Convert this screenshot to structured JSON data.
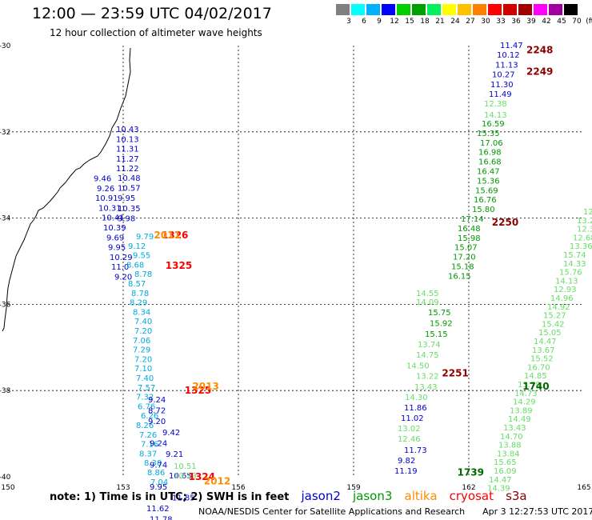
{
  "header": {
    "title": "12:00 — 23:59 UTC 04/02/2017",
    "subtitle": "12 hour collection of altimeter wave heights"
  },
  "scale": {
    "unit": "(ft)",
    "bins": [
      {
        "label": "3",
        "color": "#808080"
      },
      {
        "label": "6",
        "color": "#00ffff"
      },
      {
        "label": "9",
        "color": "#00b0ff"
      },
      {
        "label": "12",
        "color": "#0000ff"
      },
      {
        "label": "15",
        "color": "#00d000"
      },
      {
        "label": "18",
        "color": "#00a000"
      },
      {
        "label": "21",
        "color": "#00f060"
      },
      {
        "label": "24",
        "color": "#ffff00"
      },
      {
        "label": "27",
        "color": "#ffc000"
      },
      {
        "label": "30",
        "color": "#ff8000"
      },
      {
        "label": "33",
        "color": "#ff0000"
      },
      {
        "label": "36",
        "color": "#d00000"
      },
      {
        "label": "39",
        "color": "#a00000"
      },
      {
        "label": "42",
        "color": "#ff00ff"
      },
      {
        "label": "45",
        "color": "#a000a0"
      },
      {
        "label": "70",
        "color": "#000000"
      }
    ]
  },
  "map": {
    "lon_ticks": [
      "150",
      "153",
      "156",
      "159",
      "162",
      "165"
    ],
    "lat_ticks": [
      "-30",
      "-32",
      "-34",
      "-36",
      "-38",
      "-40"
    ],
    "lon_range": [
      150,
      165
    ],
    "lat_range": [
      -40,
      -30
    ]
  },
  "tracks": {
    "track_a": {
      "color": "#0000cc",
      "values": [
        "10.43",
        "10.13",
        "11.31",
        "11.27",
        "11.22",
        "9.46",
        "9.26",
        "10.91",
        "10.31",
        "10.41",
        "10.39",
        "9.69",
        "9.95",
        "10.29",
        "11.0",
        "9.20"
      ]
    },
    "track_a2": {
      "color": "#0000cc",
      "values": [
        "10.48",
        "10.57",
        "9.95",
        "10.35",
        "9.98"
      ]
    },
    "track_b": {
      "color": "#00aadd",
      "values": [
        "9.79",
        "9.12",
        "9.55",
        "8.68",
        "8.78",
        "8.57",
        "8.78",
        "8.29",
        "8.34",
        "7.40",
        "7.20",
        "7.06",
        "7.29",
        "7.20",
        "7.10",
        "7.40",
        "7.57",
        "7.32",
        "6.76",
        "6.26",
        "8.26",
        "7.26",
        "7.16",
        "8.37",
        "8.38",
        "8.86",
        "7.04"
      ]
    },
    "track_c": {
      "color": "#0000cc",
      "values": [
        "9.24",
        "8.72",
        "9.20",
        "9.42",
        "9.24",
        "9.21",
        "9.74",
        "10.65",
        "9.95",
        "11.85",
        "11.62",
        "11.78"
      ]
    },
    "track_d": {
      "color": "#66dd66",
      "values": [
        "10.51",
        "10.29"
      ]
    },
    "track_e": {
      "color": "#0000cc",
      "values": [
        "11.47",
        "10.12",
        "11.13",
        "10.27",
        "11.30",
        "11.49"
      ]
    },
    "track_f": {
      "color": "#66dd66",
      "values": [
        "12.38",
        "14.13"
      ]
    },
    "track_g": {
      "color": "#009900",
      "values": [
        "16.59",
        "15.35",
        "17.06",
        "16.98",
        "16.68",
        "16.47",
        "15.36",
        "15.69",
        "16.76",
        "15.80",
        "17.14",
        "16.48",
        "15.98",
        "15.07",
        "17.20",
        "15.18",
        "16.15"
      ]
    },
    "track_h": {
      "color": "#66dd66",
      "values": [
        "14.55",
        "14.09"
      ]
    },
    "track_i": {
      "color": "#009900",
      "values": [
        "15.75",
        "15.92",
        "15.15"
      ]
    },
    "track_j": {
      "color": "#66dd66",
      "values": [
        "13.74",
        "14.75",
        "14.50",
        "13.22",
        "13.43",
        "14.30"
      ]
    },
    "track_k": {
      "color": "#0000cc",
      "values": [
        "11.86",
        "11.02"
      ]
    },
    "track_l": {
      "color": "#66dd66",
      "values": [
        "13.02",
        "12.46"
      ]
    },
    "track_m": {
      "color": "#0000cc",
      "values": [
        "11.73",
        "9.82",
        "11.19"
      ]
    },
    "track_n": {
      "color": "#66dd66",
      "values": [
        "12",
        "13.2",
        "12.32",
        "12.68",
        "13.36",
        "15.74",
        "14.33",
        "15.76",
        "14.13",
        "12.93",
        "14.96",
        "14.92",
        "15.27",
        "15.42",
        "15.05",
        "14.47",
        "13.67",
        "15.52",
        "16.70",
        "14.85",
        "13.78",
        "14.73",
        "14.29",
        "13.89",
        "14.49",
        "13.43",
        "14.70",
        "13.88",
        "13.84",
        "15.65",
        "16.09",
        "14.47",
        "14.39"
      ]
    },
    "times": [
      {
        "label": "2248",
        "color": "#8b0000",
        "lon": 163.5,
        "lat": -30.1
      },
      {
        "label": "2249",
        "color": "#8b0000",
        "lon": 163.5,
        "lat": -30.6
      },
      {
        "label": "2250",
        "color": "#8b0000",
        "lon": 162.6,
        "lat": -34.1
      },
      {
        "label": "2251",
        "color": "#8b0000",
        "lon": 161.3,
        "lat": -37.6
      },
      {
        "label": "1740",
        "color": "#006600",
        "lon": 163.4,
        "lat": -37.9
      },
      {
        "label": "1739",
        "color": "#006600",
        "lon": 161.7,
        "lat": -39.9
      },
      {
        "label": "1326",
        "color": "#ff0000",
        "lon": 154.0,
        "lat": -34.4
      },
      {
        "label": "1325",
        "color": "#ff0000",
        "lon": 154.1,
        "lat": -35.1
      },
      {
        "label": "1325",
        "color": "#ff0000",
        "lon": 154.6,
        "lat": -38.0
      },
      {
        "label": "1324",
        "color": "#ff0000",
        "lon": 154.7,
        "lat": -40.0
      },
      {
        "label": "2011",
        "color": "#ff8c00",
        "lon": 153.8,
        "lat": -34.4
      },
      {
        "label": "2013",
        "color": "#ff8c00",
        "lon": 154.8,
        "lat": -37.9
      },
      {
        "label": "2012",
        "color": "#ff8c00",
        "lon": 155.1,
        "lat": -40.1
      }
    ]
  },
  "legend": {
    "note": "note: 1) Time is in UTC; 2) SWH is in feet",
    "satellites": [
      {
        "name": "jason2",
        "color": "#0000cc"
      },
      {
        "name": "jason3",
        "color": "#009900"
      },
      {
        "name": "altika",
        "color": "#ff8c00"
      },
      {
        "name": "cryosat",
        "color": "#ff0000"
      },
      {
        "name": "s3a",
        "color": "#8b0000"
      }
    ]
  },
  "footer": {
    "credit": "NOAA/NESDIS Center for Satellite Applications and Research",
    "timestamp": "Apr  3 12:27:53 UTC 2017"
  }
}
